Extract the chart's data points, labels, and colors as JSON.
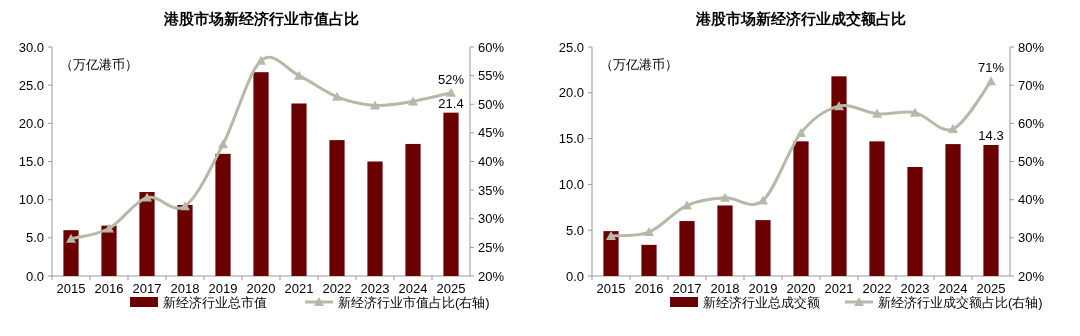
{
  "chart_data": [
    {
      "type": "bar",
      "title": "港股市场新经济行业市值占比",
      "annotations": [
        "（万亿港币）"
      ],
      "categories": [
        "2015",
        "2016",
        "2017",
        "2018",
        "2019",
        "2020",
        "2021",
        "2022",
        "2023",
        "2024",
        "2025"
      ],
      "series": [
        {
          "name": "新经济行业总市值",
          "color": "#6b0000",
          "values": [
            6.0,
            6.6,
            11.0,
            9.3,
            16.0,
            26.7,
            22.6,
            17.8,
            15.0,
            17.3,
            21.4
          ],
          "value_labels": [
            null,
            null,
            null,
            null,
            null,
            null,
            null,
            null,
            null,
            null,
            "21.4"
          ]
        },
        {
          "name": "新经济行业市值占比(右轴)",
          "type": "line",
          "axis": "y2",
          "color": "#b8b8a8",
          "marker": "triangle",
          "values": [
            26.5,
            28.3,
            33.7,
            32.2,
            43,
            57.6,
            55,
            51.3,
            49.8,
            50.5,
            52
          ],
          "value_labels": [
            null,
            null,
            null,
            null,
            null,
            null,
            null,
            null,
            null,
            null,
            "52%"
          ]
        }
      ],
      "ylim": [
        0,
        30
      ],
      "yticks": [
        {
          "value": 0,
          "label": "0.0"
        },
        {
          "value": 5,
          "label": "5.0"
        },
        {
          "value": 10,
          "label": "10.0"
        },
        {
          "value": 15,
          "label": "15.0"
        },
        {
          "value": 20,
          "label": "20.0"
        },
        {
          "value": 25,
          "label": "25.0"
        },
        {
          "value": 30,
          "label": "30.0"
        }
      ],
      "y2lim": [
        20,
        60
      ],
      "y2ticks": [
        {
          "value": 20,
          "label": "20%"
        },
        {
          "value": 25,
          "label": "25%"
        },
        {
          "value": 30,
          "label": "30%"
        },
        {
          "value": 35,
          "label": "35%"
        },
        {
          "value": 40,
          "label": "40%"
        },
        {
          "value": 45,
          "label": "45%"
        },
        {
          "value": 50,
          "label": "50%"
        },
        {
          "value": 55,
          "label": "55%"
        },
        {
          "value": 60,
          "label": "60%"
        }
      ],
      "legend": "bottom",
      "grid": false
    },
    {
      "type": "bar",
      "title": "港股市场新经济行业成交额占比",
      "annotations": [
        "（万亿港币）"
      ],
      "categories": [
        "2015",
        "2016",
        "2017",
        "2018",
        "2019",
        "2020",
        "2021",
        "2022",
        "2023",
        "2024",
        "2025"
      ],
      "series": [
        {
          "name": "新经济行业总成交额",
          "color": "#6b0000",
          "values": [
            4.9,
            3.4,
            6.0,
            7.7,
            6.1,
            14.7,
            21.8,
            14.7,
            11.9,
            14.4,
            14.3
          ],
          "value_labels": [
            null,
            null,
            null,
            null,
            null,
            null,
            null,
            null,
            null,
            null,
            "14.3"
          ]
        },
        {
          "name": "新经济行业成交额占比(右轴)",
          "type": "line",
          "axis": "y2",
          "color": "#b8b8a8",
          "marker": "triangle",
          "values": [
            30.5,
            31.5,
            38.5,
            40.5,
            39.8,
            57.5,
            64.5,
            62.5,
            62.8,
            58.5,
            71
          ],
          "value_labels": [
            null,
            null,
            null,
            null,
            null,
            null,
            null,
            null,
            null,
            null,
            "71%"
          ]
        }
      ],
      "ylim": [
        0,
        25
      ],
      "yticks": [
        {
          "value": 0,
          "label": "0.0"
        },
        {
          "value": 5,
          "label": "5.0"
        },
        {
          "value": 10,
          "label": "10.0"
        },
        {
          "value": 15,
          "label": "15.0"
        },
        {
          "value": 20,
          "label": "20.0"
        },
        {
          "value": 25,
          "label": "25.0"
        }
      ],
      "y2lim": [
        20,
        80
      ],
      "y2ticks": [
        {
          "value": 20,
          "label": "20%"
        },
        {
          "value": 30,
          "label": "30%"
        },
        {
          "value": 40,
          "label": "40%"
        },
        {
          "value": 50,
          "label": "50%"
        },
        {
          "value": 60,
          "label": "60%"
        },
        {
          "value": 70,
          "label": "70%"
        },
        {
          "value": 80,
          "label": "80%"
        }
      ],
      "legend": "bottom",
      "grid": false
    }
  ]
}
